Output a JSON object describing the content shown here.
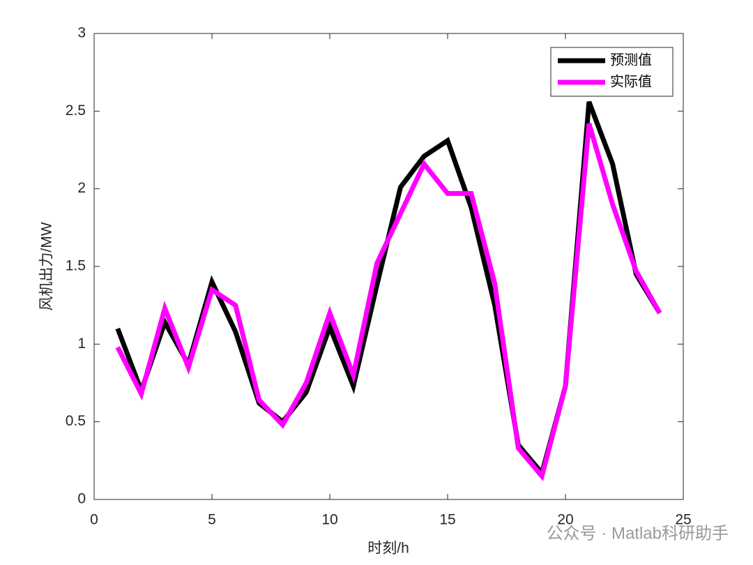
{
  "chart_data": {
    "type": "line",
    "xlabel": "时刻/h",
    "ylabel": "风机出力/MW",
    "x": [
      1,
      2,
      3,
      4,
      5,
      6,
      7,
      8,
      9,
      10,
      11,
      12,
      13,
      14,
      15,
      16,
      17,
      18,
      19,
      20,
      21,
      22,
      23,
      24
    ],
    "series": [
      {
        "name": "预测值",
        "color": "#000000",
        "values": [
          1.1,
          0.7,
          1.14,
          0.87,
          1.4,
          1.08,
          0.62,
          0.5,
          0.69,
          1.11,
          0.73,
          1.38,
          2.01,
          2.21,
          2.31,
          1.88,
          1.25,
          0.35,
          0.17,
          0.73,
          2.56,
          2.16,
          1.45,
          1.2
        ]
      },
      {
        "name": "实际值",
        "color": "#ff00ff",
        "values": [
          0.98,
          0.68,
          1.23,
          0.85,
          1.35,
          1.25,
          0.64,
          0.48,
          0.75,
          1.2,
          0.8,
          1.52,
          1.84,
          2.16,
          1.97,
          1.97,
          1.39,
          0.33,
          0.15,
          0.73,
          2.42,
          1.9,
          1.47,
          1.2
        ]
      }
    ],
    "xlim": [
      0,
      25
    ],
    "xticks": [
      0,
      5,
      10,
      15,
      20,
      25
    ],
    "ylim": [
      0,
      3
    ],
    "yticks": [
      0,
      0.5,
      1,
      1.5,
      2,
      2.5,
      3
    ],
    "legend": "top-right",
    "grid": false,
    "watermark": "公众号 · Matlab科研助手"
  }
}
